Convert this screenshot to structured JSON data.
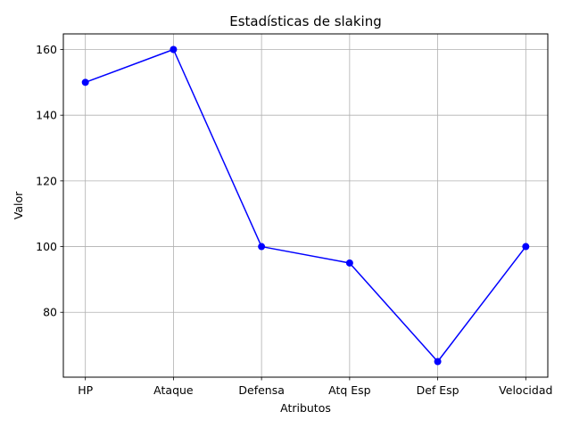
{
  "chart_data": {
    "type": "line",
    "title": "Estadísticas de slaking",
    "xlabel": "Atributos",
    "ylabel": "Valor",
    "categories": [
      "HP",
      "Ataque",
      "Defensa",
      "Atq Esp",
      "Def Esp",
      "Velocidad"
    ],
    "series": [
      {
        "values": [
          150,
          160,
          100,
          95,
          65,
          100
        ],
        "color": "#0000ff",
        "marker": "circle"
      }
    ],
    "ylim": [
      60.25,
      164.75
    ],
    "yticks": [
      80,
      100,
      120,
      140,
      160
    ],
    "grid": true,
    "legend": "none"
  }
}
